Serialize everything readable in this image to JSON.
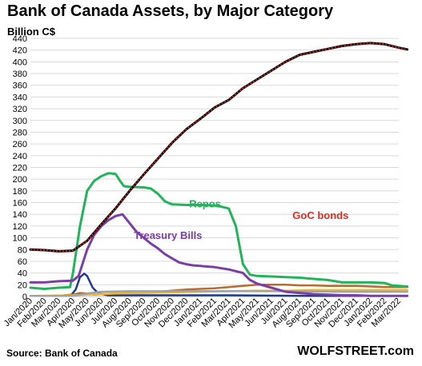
{
  "header": {
    "title": "Bank of Canada Assets, by Major Category",
    "unit": "Billion C$"
  },
  "footer": {
    "source": "Source: Bank of Canada",
    "brand": "WOLFSTREET.com"
  },
  "chart_data": {
    "type": "line",
    "title": "Bank of Canada Assets, by Major Category",
    "ylabel": "Billion C$",
    "ylim": [
      0,
      440
    ],
    "yticks": [
      0,
      20,
      40,
      60,
      80,
      100,
      120,
      140,
      160,
      180,
      200,
      220,
      240,
      260,
      280,
      300,
      320,
      340,
      360,
      380,
      400,
      420,
      440
    ],
    "x": [
      "Jan/2020",
      "Feb/2020",
      "Mar/2020",
      "Apr/2020",
      "May/2020",
      "Jun/2020",
      "Jul/2020",
      "Aug/2020",
      "Sep/2020",
      "Oct/2020",
      "Nov/2020",
      "Dec/2020",
      "Jan/2021",
      "Feb/2021",
      "Mar/2021",
      "Apr/2021",
      "May/2021",
      "Jun/2021",
      "Jul/2021",
      "Aug/2021",
      "Sep/2021",
      "Oct/2021",
      "Nov/2021",
      "Dec/2021",
      "Jan/2022",
      "Feb/2022",
      "Mar/2022"
    ],
    "grid": true,
    "series": [
      {
        "name": "GoC bonds",
        "color": "#000000",
        "dash_color": "#e8291c",
        "points": [
          [
            0,
            80
          ],
          [
            1,
            79
          ],
          [
            2,
            77
          ],
          [
            3,
            78
          ],
          [
            4,
            95
          ],
          [
            5,
            123
          ],
          [
            6,
            150
          ],
          [
            7,
            180
          ],
          [
            8,
            208
          ],
          [
            9,
            235
          ],
          [
            10,
            262
          ],
          [
            11,
            285
          ],
          [
            12,
            303
          ],
          [
            13,
            322
          ],
          [
            14,
            335
          ],
          [
            15,
            355
          ],
          [
            16,
            370
          ],
          [
            17,
            385
          ],
          [
            18,
            400
          ],
          [
            19,
            412
          ],
          [
            20,
            417
          ],
          [
            21,
            422
          ],
          [
            22,
            427
          ],
          [
            23,
            430
          ],
          [
            24,
            432
          ],
          [
            25,
            430
          ],
          [
            26,
            424
          ],
          [
            26.6,
            421
          ]
        ]
      },
      {
        "name": "Repos",
        "color": "#22b35b",
        "points": [
          [
            0,
            15
          ],
          [
            1,
            13
          ],
          [
            2,
            15
          ],
          [
            2.8,
            16
          ],
          [
            3,
            40
          ],
          [
            3.5,
            120
          ],
          [
            4,
            180
          ],
          [
            4.5,
            197
          ],
          [
            5,
            205
          ],
          [
            5.5,
            210
          ],
          [
            6,
            209
          ],
          [
            6.3,
            198
          ],
          [
            6.6,
            188
          ],
          [
            7,
            187
          ],
          [
            8,
            186
          ],
          [
            8.5,
            184
          ],
          [
            9,
            175
          ],
          [
            9.5,
            162
          ],
          [
            10,
            157
          ],
          [
            11,
            156
          ],
          [
            12,
            156
          ],
          [
            13,
            155
          ],
          [
            13.5,
            153
          ],
          [
            14,
            150
          ],
          [
            14.5,
            120
          ],
          [
            15,
            55
          ],
          [
            15.5,
            37
          ],
          [
            16,
            35
          ],
          [
            17,
            34
          ],
          [
            18,
            33
          ],
          [
            19,
            32
          ],
          [
            20,
            30
          ],
          [
            21,
            28
          ],
          [
            22,
            24
          ],
          [
            23,
            24
          ],
          [
            24,
            24
          ],
          [
            25,
            23
          ],
          [
            25.5,
            19
          ],
          [
            26,
            18
          ],
          [
            26.6,
            17
          ]
        ]
      },
      {
        "name": "Treasury Bills",
        "color": "#7a3fa5",
        "points": [
          [
            0,
            24
          ],
          [
            1,
            24
          ],
          [
            2,
            26
          ],
          [
            3,
            27
          ],
          [
            3.4,
            35
          ],
          [
            4,
            80
          ],
          [
            4.5,
            105
          ],
          [
            5,
            120
          ],
          [
            5.5,
            130
          ],
          [
            6,
            137
          ],
          [
            6.5,
            140
          ],
          [
            7,
            125
          ],
          [
            7.5,
            110
          ],
          [
            8,
            100
          ],
          [
            8.5,
            90
          ],
          [
            9,
            82
          ],
          [
            9.5,
            72
          ],
          [
            10,
            65
          ],
          [
            10.5,
            58
          ],
          [
            11,
            55
          ],
          [
            11.5,
            53
          ],
          [
            12,
            52
          ],
          [
            13,
            50
          ],
          [
            14,
            46
          ],
          [
            15,
            40
          ],
          [
            15.5,
            28
          ],
          [
            16,
            22
          ],
          [
            17,
            15
          ],
          [
            18,
            8
          ],
          [
            19,
            6
          ],
          [
            20,
            4
          ],
          [
            21,
            3
          ],
          [
            22,
            2
          ],
          [
            23,
            2
          ],
          [
            24,
            1
          ],
          [
            25,
            1
          ],
          [
            26,
            1
          ],
          [
            26.6,
            1
          ]
        ]
      },
      {
        "name": "",
        "color": "#1f3a8a",
        "points": [
          [
            0,
            1
          ],
          [
            2,
            1
          ],
          [
            2.9,
            3
          ],
          [
            3.2,
            12
          ],
          [
            3.5,
            33
          ],
          [
            3.8,
            39
          ],
          [
            4,
            35
          ],
          [
            4.4,
            15
          ],
          [
            4.8,
            5
          ],
          [
            5.5,
            2
          ],
          [
            8,
            2
          ],
          [
            14,
            2
          ],
          [
            20,
            1
          ],
          [
            26.6,
            1
          ]
        ]
      },
      {
        "name": "",
        "color": "#b86b2c",
        "points": [
          [
            0,
            1
          ],
          [
            2,
            1
          ],
          [
            3,
            3
          ],
          [
            3.5,
            6
          ],
          [
            4,
            5
          ],
          [
            4.5,
            3
          ],
          [
            5,
            4
          ],
          [
            7,
            6
          ],
          [
            9,
            8
          ],
          [
            11,
            12
          ],
          [
            12,
            13
          ],
          [
            13,
            14
          ],
          [
            14,
            16
          ],
          [
            15,
            18
          ],
          [
            16,
            20
          ],
          [
            17,
            20
          ],
          [
            18,
            20
          ],
          [
            19,
            19
          ],
          [
            20,
            19
          ],
          [
            21,
            18
          ],
          [
            22,
            18
          ],
          [
            23,
            18
          ],
          [
            24,
            17
          ],
          [
            25,
            16
          ],
          [
            26.6,
            16
          ]
        ]
      },
      {
        "name": "",
        "color": "#f0b82d",
        "points": [
          [
            0,
            1
          ],
          [
            3,
            2
          ],
          [
            4,
            3
          ],
          [
            6,
            5
          ],
          [
            8,
            6
          ],
          [
            10,
            7
          ],
          [
            12,
            8
          ],
          [
            14,
            9
          ],
          [
            16,
            10
          ],
          [
            18,
            10
          ],
          [
            20,
            11
          ],
          [
            22,
            11
          ],
          [
            24,
            11
          ],
          [
            26.6,
            11
          ]
        ]
      },
      {
        "name": "",
        "color": "#9aa3ae",
        "points": [
          [
            0,
            1
          ],
          [
            3,
            1
          ],
          [
            4,
            5
          ],
          [
            5,
            8
          ],
          [
            7,
            9
          ],
          [
            10,
            9
          ],
          [
            14,
            9
          ],
          [
            18,
            9
          ],
          [
            22,
            8
          ],
          [
            26.6,
            8
          ]
        ]
      }
    ],
    "annotations": [
      {
        "text": "GoC bonds",
        "color": "#e8291c"
      },
      {
        "text": "Repos",
        "color": "#22b35b"
      },
      {
        "text": "Treasury Bills",
        "color": "#7a3fa5"
      }
    ]
  }
}
